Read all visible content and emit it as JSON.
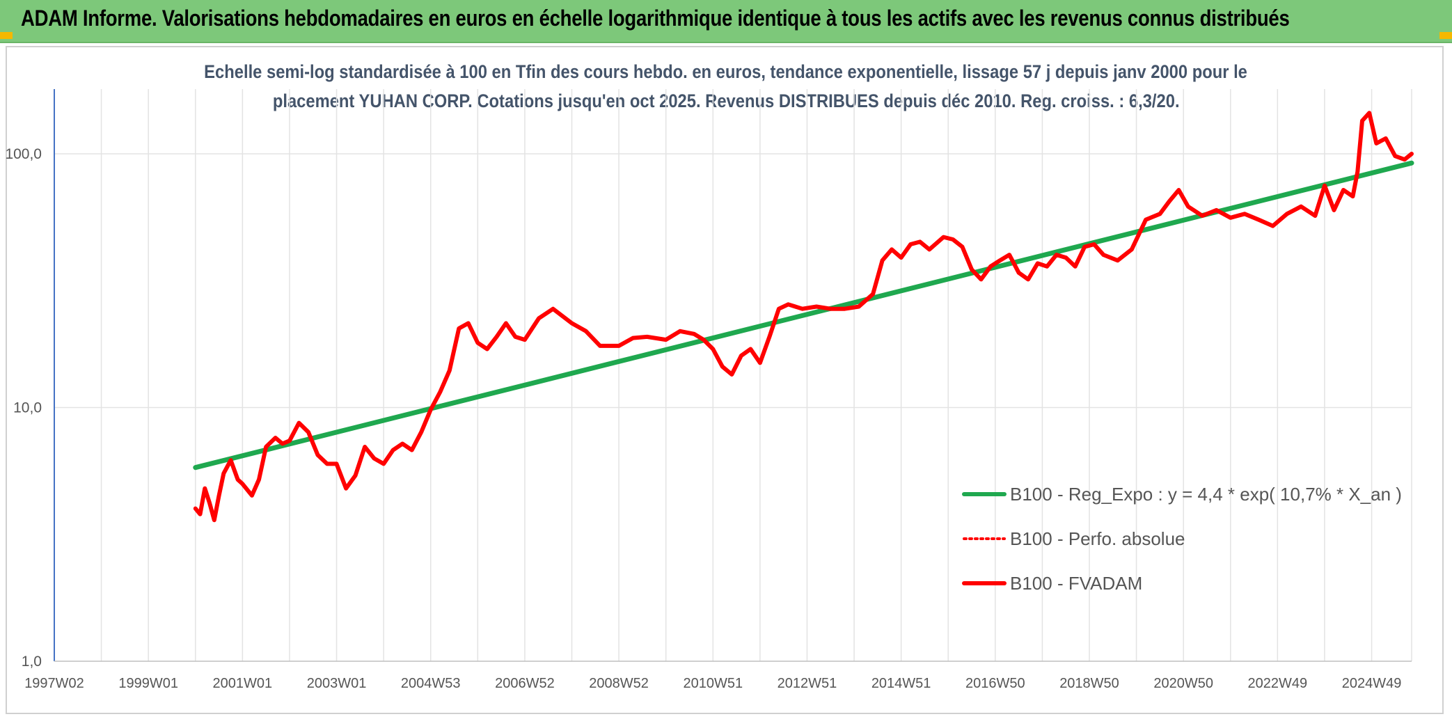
{
  "header": {
    "title": "ADAM Informe. Valorisations hebdomadaires en euros en échelle logarithmique identique à tous les actifs avec les revenus connus distribués"
  },
  "chart_data": {
    "type": "line",
    "title_line1": "Echelle semi-log standardisée à 100 en Tfin des cours hebdo. en euros, tendance exponentielle, lissage 57 j depuis janv 2000 pour le",
    "title_line2": "placement YUHAN CORP. Cotations jusqu'en oct 2025. Revenus DISTRIBUES depuis déc 2010. Reg. croiss. : 6,3/20.",
    "y_scale": "log",
    "ylim": [
      1,
      180
    ],
    "y_ticks": [
      {
        "value": 1,
        "label": "1,0"
      },
      {
        "value": 10,
        "label": "10,0"
      },
      {
        "value": 100,
        "label": "100,0"
      }
    ],
    "xlim": [
      1997.0,
      2025.85
    ],
    "x_ticks": [
      {
        "value": 1997.0,
        "label": "1997W02"
      },
      {
        "value": 1999.0,
        "label": "1999W01"
      },
      {
        "value": 2001.0,
        "label": "2001W01"
      },
      {
        "value": 2003.0,
        "label": "2003W01"
      },
      {
        "value": 2005.0,
        "label": "2004W53"
      },
      {
        "value": 2007.0,
        "label": "2006W52"
      },
      {
        "value": 2009.0,
        "label": "2008W52"
      },
      {
        "value": 2011.0,
        "label": "2010W51"
      },
      {
        "value": 2013.0,
        "label": "2012W51"
      },
      {
        "value": 2015.0,
        "label": "2014W51"
      },
      {
        "value": 2017.0,
        "label": "2016W50"
      },
      {
        "value": 2019.0,
        "label": "2018W50"
      },
      {
        "value": 2021.0,
        "label": "2020W50"
      },
      {
        "value": 2023.0,
        "label": "2022W49"
      },
      {
        "value": 2025.0,
        "label": "2024W49"
      }
    ],
    "grid": true,
    "legend_position": "bottom-right",
    "series": [
      {
        "name": "B100 - Reg_Expo : y = 4,4 * exp( 10,7% *  X_an )",
        "color": "#1fa84f",
        "style": "solid",
        "x": [
          2000.0,
          2025.85
        ],
        "y": [
          5.8,
          92.0
        ]
      },
      {
        "name": "B100 - Perfo. absolue",
        "color": "#ff0000",
        "style": "dotted",
        "x": [],
        "y": []
      },
      {
        "name": "B100 - FVADAM",
        "color": "#ff0000",
        "style": "solid",
        "x": [
          2000.0,
          2000.1,
          2000.2,
          2000.3,
          2000.4,
          2000.5,
          2000.6,
          2000.75,
          2000.9,
          2001.0,
          2001.2,
          2001.35,
          2001.5,
          2001.7,
          2001.85,
          2002.0,
          2002.2,
          2002.4,
          2002.6,
          2002.8,
          2003.0,
          2003.2,
          2003.4,
          2003.6,
          2003.8,
          2004.0,
          2004.2,
          2004.4,
          2004.6,
          2004.8,
          2005.0,
          2005.2,
          2005.4,
          2005.6,
          2005.8,
          2006.0,
          2006.2,
          2006.4,
          2006.6,
          2006.8,
          2007.0,
          2007.3,
          2007.6,
          2008.0,
          2008.3,
          2008.6,
          2009.0,
          2009.3,
          2009.6,
          2010.0,
          2010.3,
          2010.6,
          2010.8,
          2011.0,
          2011.2,
          2011.4,
          2011.6,
          2011.8,
          2012.0,
          2012.2,
          2012.4,
          2012.6,
          2012.9,
          2013.2,
          2013.5,
          2013.8,
          2014.1,
          2014.4,
          2014.6,
          2014.8,
          2015.0,
          2015.2,
          2015.4,
          2015.6,
          2015.9,
          2016.1,
          2016.3,
          2016.5,
          2016.7,
          2016.9,
          2017.1,
          2017.3,
          2017.5,
          2017.7,
          2017.9,
          2018.1,
          2018.3,
          2018.5,
          2018.7,
          2018.9,
          2019.1,
          2019.3,
          2019.6,
          2019.9,
          2020.2,
          2020.5,
          2020.7,
          2020.9,
          2021.1,
          2021.4,
          2021.7,
          2022.0,
          2022.3,
          2022.6,
          2022.9,
          2023.2,
          2023.5,
          2023.8,
          2024.0,
          2024.2,
          2024.4,
          2024.6,
          2024.7,
          2024.8,
          2024.95,
          2025.1,
          2025.3,
          2025.5,
          2025.7,
          2025.85
        ],
        "y": [
          4.0,
          3.8,
          4.8,
          4.2,
          3.6,
          4.5,
          5.5,
          6.2,
          5.2,
          5.0,
          4.5,
          5.2,
          7.0,
          7.6,
          7.2,
          7.4,
          8.7,
          8.0,
          6.5,
          6.0,
          6.0,
          4.8,
          5.4,
          7.0,
          6.3,
          6.0,
          6.8,
          7.2,
          6.8,
          8.0,
          9.8,
          11.5,
          14.0,
          20.5,
          21.5,
          18.0,
          17.0,
          19.0,
          21.5,
          19.0,
          18.5,
          22.5,
          24.5,
          21.5,
          20.0,
          17.5,
          17.5,
          18.8,
          19.0,
          18.5,
          20.0,
          19.5,
          18.5,
          17.0,
          14.5,
          13.5,
          16.0,
          17.0,
          15.0,
          19.0,
          24.5,
          25.5,
          24.5,
          25.0,
          24.5,
          24.5,
          25.0,
          28.0,
          38.0,
          42.0,
          39.0,
          44.0,
          45.0,
          42.0,
          47.0,
          46.0,
          43.0,
          35.0,
          32.0,
          36.0,
          38.0,
          40.0,
          34.0,
          32.0,
          37.0,
          36.0,
          40.0,
          39.0,
          36.0,
          43.0,
          44.0,
          40.0,
          38.0,
          42.0,
          55.0,
          58.0,
          65.0,
          72.0,
          62.0,
          57.0,
          60.0,
          56.0,
          58.0,
          55.0,
          52.0,
          58.0,
          62.0,
          57.0,
          75.0,
          60.0,
          72.0,
          68.0,
          85.0,
          135.0,
          145.0,
          110.0,
          115.0,
          98.0,
          95.0,
          100.0
        ]
      }
    ]
  }
}
